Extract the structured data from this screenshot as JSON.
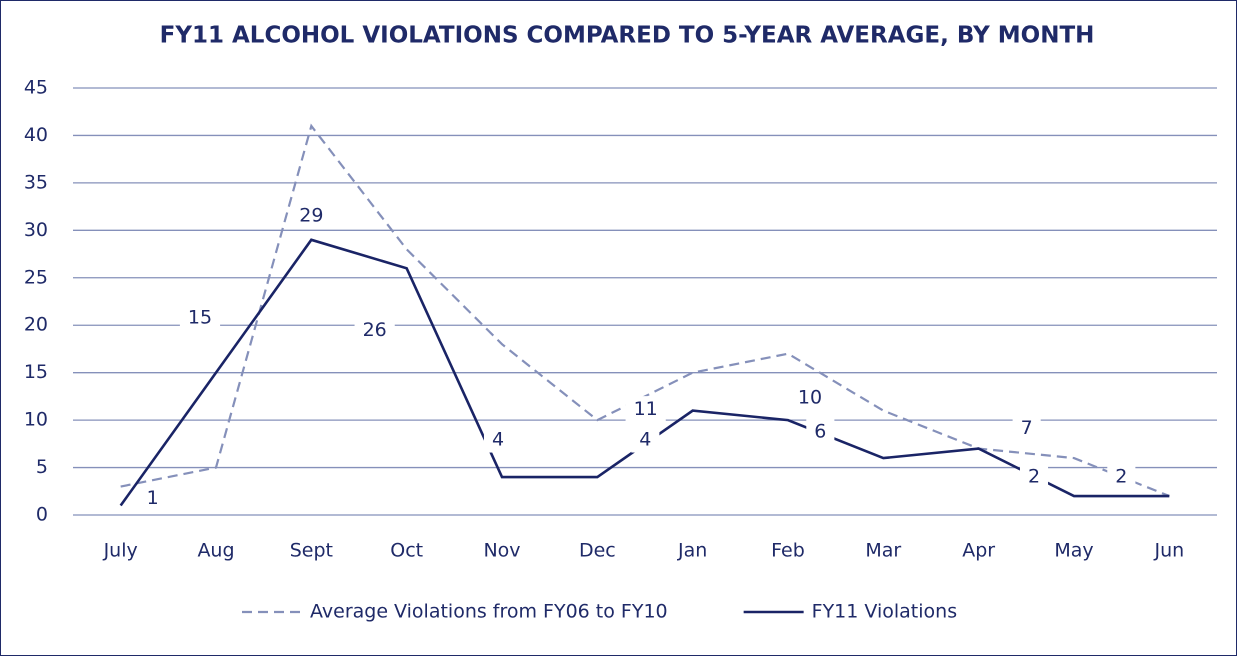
{
  "chart_data": {
    "type": "line",
    "title": "FY11 ALCOHOL VIOLATIONS COMPARED TO 5-YEAR AVERAGE, BY MONTH",
    "categories": [
      "July",
      "Aug",
      "Sept",
      "Oct",
      "Nov",
      "Dec",
      "Jan",
      "Feb",
      "Mar",
      "Apr",
      "May",
      "Jun"
    ],
    "series": [
      {
        "name": "Average Violations from FY06 to FY10",
        "color": "#8590ba",
        "dashed": true,
        "values": [
          3,
          5,
          41,
          28,
          18,
          10,
          15,
          17,
          11,
          7,
          6,
          2
        ]
      },
      {
        "name": "FY11 Violations",
        "color": "#1a2466",
        "dashed": false,
        "data_labels": true,
        "values": [
          1,
          15,
          29,
          26,
          4,
          4,
          11,
          10,
          6,
          7,
          2,
          2
        ]
      }
    ],
    "ylim": [
      0,
      45
    ],
    "yticks": [
      0,
      5,
      10,
      15,
      20,
      25,
      30,
      35,
      40,
      45
    ],
    "grid": true,
    "legend": "bottom"
  }
}
